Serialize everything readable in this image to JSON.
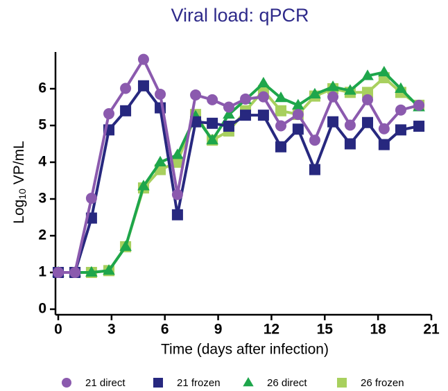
{
  "chart_data": {
    "type": "line",
    "title": "Viral load: qPCR",
    "x_label": "Time (days after infection)",
    "y_label": {
      "base": "Log",
      "subscript": "10",
      "rest": " VP/mL"
    },
    "xlim": [
      0,
      21
    ],
    "xticks": [
      0,
      3,
      6,
      9,
      12,
      15,
      18,
      21
    ],
    "ylim": [
      0,
      7
    ],
    "yticks": [
      0,
      1,
      2,
      3,
      4,
      5,
      6
    ],
    "x": [
      0,
      0.94,
      1.87,
      2.85,
      3.79,
      4.8,
      5.74,
      6.71,
      7.73,
      8.67,
      9.6,
      10.54,
      11.55,
      12.53,
      13.5,
      14.44,
      15.46,
      16.43,
      17.41,
      18.34,
      19.28,
      20.3
    ],
    "series": [
      {
        "name": "21 direct",
        "color": "#8b5aae",
        "marker": "circle",
        "values": [
          1,
          1,
          3.02,
          5.32,
          6.01,
          6.8,
          5.85,
          3.12,
          5.83,
          5.7,
          5.5,
          5.72,
          5.78,
          4.99,
          5.3,
          4.6,
          5.78,
          5.01,
          5.7,
          4.91,
          5.42,
          5.55
        ]
      },
      {
        "name": "21 frozen",
        "color": "#27287f",
        "marker": "square",
        "values": [
          1,
          1,
          2.48,
          4.88,
          5.4,
          6.08,
          5.48,
          2.57,
          5.1,
          5.06,
          4.98,
          5.28,
          5.28,
          4.42,
          4.9,
          3.8,
          5.1,
          4.5,
          5.08,
          4.48,
          4.88,
          4.98
        ]
      },
      {
        "name": "26 direct",
        "color": "#1ea64b",
        "marker": "triangle",
        "values": [
          1,
          1,
          1,
          1.05,
          1.7,
          3.35,
          4.0,
          4.2,
          5.25,
          4.6,
          5.3,
          5.7,
          6.15,
          5.75,
          5.55,
          5.85,
          6.05,
          5.95,
          6.35,
          6.45,
          6.0,
          5.5
        ]
      },
      {
        "name": "26 frozen",
        "color": "#a8d05e",
        "marker": "square",
        "values": [
          1,
          1,
          1,
          1.05,
          1.7,
          3.3,
          3.8,
          4.0,
          5.3,
          4.6,
          4.85,
          5.4,
          5.95,
          5.4,
          5.3,
          5.8,
          6.0,
          5.9,
          5.9,
          6.3,
          5.9,
          5.55
        ]
      }
    ]
  }
}
